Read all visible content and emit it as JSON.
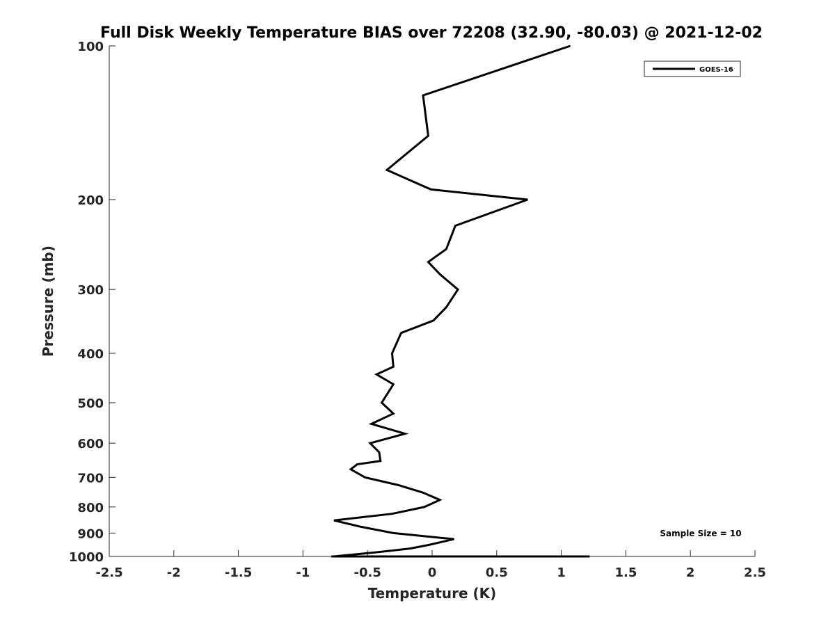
{
  "chart_data": {
    "type": "line",
    "title": "Full Disk Weekly Temperature BIAS over 72208 (32.90, -80.03) @ 2021-12-02",
    "xlabel": "Temperature (K)",
    "ylabel": "Pressure (mb)",
    "xlim": [
      -2.5,
      2.5
    ],
    "ylim": [
      1000,
      100
    ],
    "y_scale": "log",
    "y_reversed": true,
    "x_ticks": [
      "-2.5",
      "-2",
      "-1.5",
      "-1",
      "-0.5",
      "0",
      "0.5",
      "1",
      "1.5",
      "2",
      "2.5"
    ],
    "y_ticks": [
      "100",
      "200",
      "300",
      "400",
      "500",
      "600",
      "700",
      "800",
      "900",
      "1000"
    ],
    "grid": false,
    "legend_position": "top-right",
    "annotation": "Sample Size = 10",
    "series": [
      {
        "name": "GOES-16",
        "color": "#000000",
        "points": [
          {
            "x": 1.07,
            "p": 100
          },
          {
            "x": -0.07,
            "p": 125
          },
          {
            "x": -0.03,
            "p": 150
          },
          {
            "x": -0.35,
            "p": 175
          },
          {
            "x": -0.01,
            "p": 191
          },
          {
            "x": 0.74,
            "p": 200
          },
          {
            "x": 0.18,
            "p": 225
          },
          {
            "x": 0.11,
            "p": 250
          },
          {
            "x": -0.03,
            "p": 265
          },
          {
            "x": 0.06,
            "p": 280
          },
          {
            "x": 0.2,
            "p": 300
          },
          {
            "x": 0.11,
            "p": 325
          },
          {
            "x": 0.01,
            "p": 345
          },
          {
            "x": -0.24,
            "p": 365
          },
          {
            "x": -0.31,
            "p": 400
          },
          {
            "x": -0.3,
            "p": 425
          },
          {
            "x": -0.43,
            "p": 440
          },
          {
            "x": -0.3,
            "p": 460
          },
          {
            "x": -0.39,
            "p": 500
          },
          {
            "x": -0.3,
            "p": 525
          },
          {
            "x": -0.47,
            "p": 550
          },
          {
            "x": -0.21,
            "p": 575
          },
          {
            "x": -0.48,
            "p": 600
          },
          {
            "x": -0.41,
            "p": 625
          },
          {
            "x": -0.4,
            "p": 650
          },
          {
            "x": -0.58,
            "p": 660
          },
          {
            "x": -0.63,
            "p": 675
          },
          {
            "x": -0.52,
            "p": 700
          },
          {
            "x": -0.26,
            "p": 725
          },
          {
            "x": -0.07,
            "p": 750
          },
          {
            "x": 0.06,
            "p": 775
          },
          {
            "x": -0.06,
            "p": 800
          },
          {
            "x": -0.31,
            "p": 825
          },
          {
            "x": -0.76,
            "p": 850
          },
          {
            "x": -0.55,
            "p": 875
          },
          {
            "x": -0.3,
            "p": 900
          },
          {
            "x": 0.17,
            "p": 925
          },
          {
            "x": -0.03,
            "p": 950
          },
          {
            "x": -0.17,
            "p": 965
          },
          {
            "x": -0.41,
            "p": 980
          },
          {
            "x": -0.76,
            "p": 1000
          },
          {
            "x": -0.78,
            "p": 1025
          },
          {
            "x": 1.22,
            "p": 1035
          }
        ]
      }
    ]
  }
}
